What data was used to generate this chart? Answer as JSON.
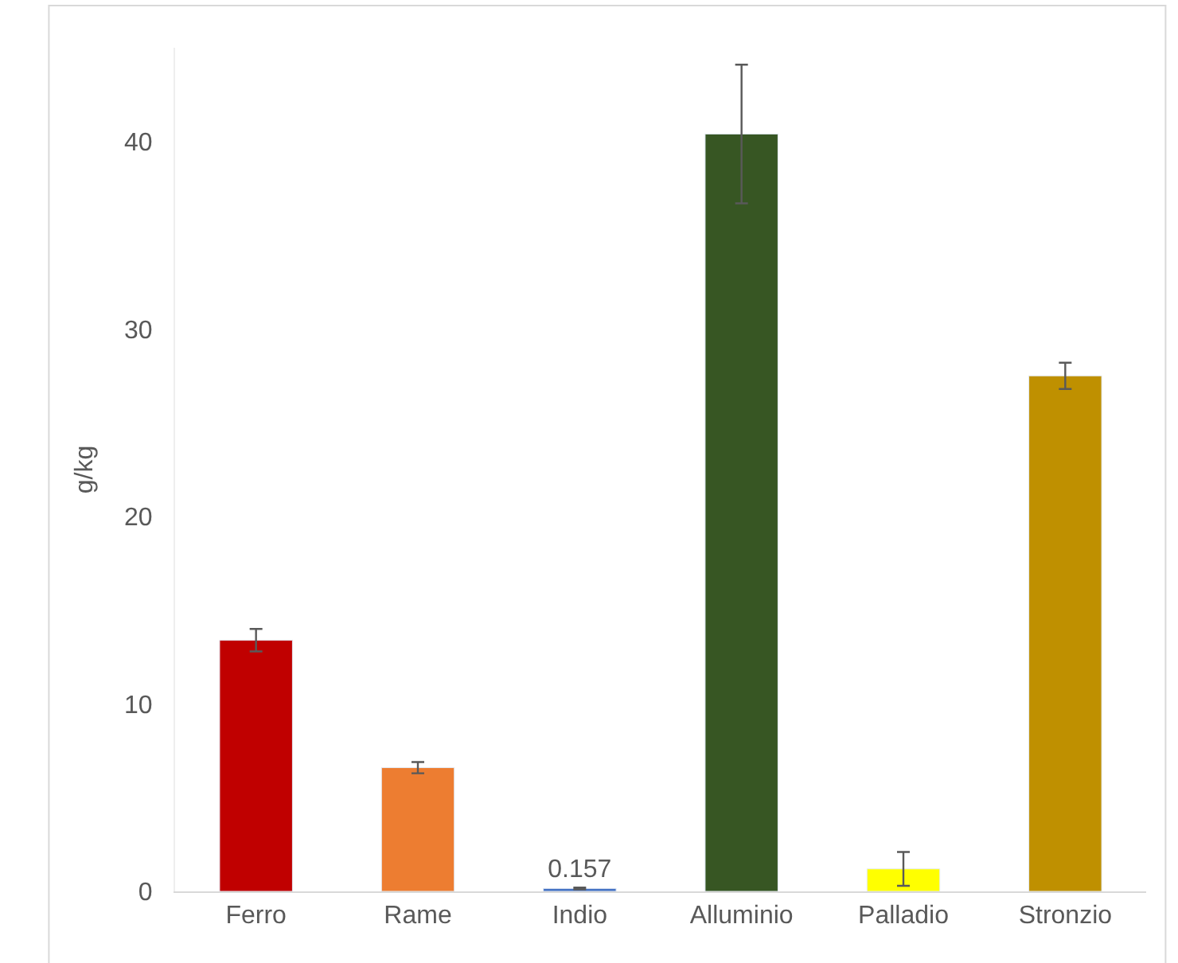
{
  "chart_data": {
    "type": "bar",
    "ylabel": "g/kg",
    "categories": [
      "Ferro",
      "Rame",
      "Indio",
      "Alluminio",
      "Palladio",
      "Stronzio"
    ],
    "values": [
      13.4,
      6.6,
      0.157,
      40.4,
      1.2,
      27.5
    ],
    "colors": [
      "#c00000",
      "#ed7d31",
      "#4472c4",
      "#375623",
      "#ffff00",
      "#bf9000"
    ],
    "errors": [
      0.6,
      0.3,
      0.05,
      3.7,
      0.9,
      0.7
    ],
    "value_labels": [
      null,
      null,
      "0.157",
      null,
      null,
      null
    ],
    "ylim": [
      0,
      45
    ],
    "yticks": [
      0,
      10,
      20,
      30,
      40
    ],
    "grid": false,
    "legend": false
  }
}
